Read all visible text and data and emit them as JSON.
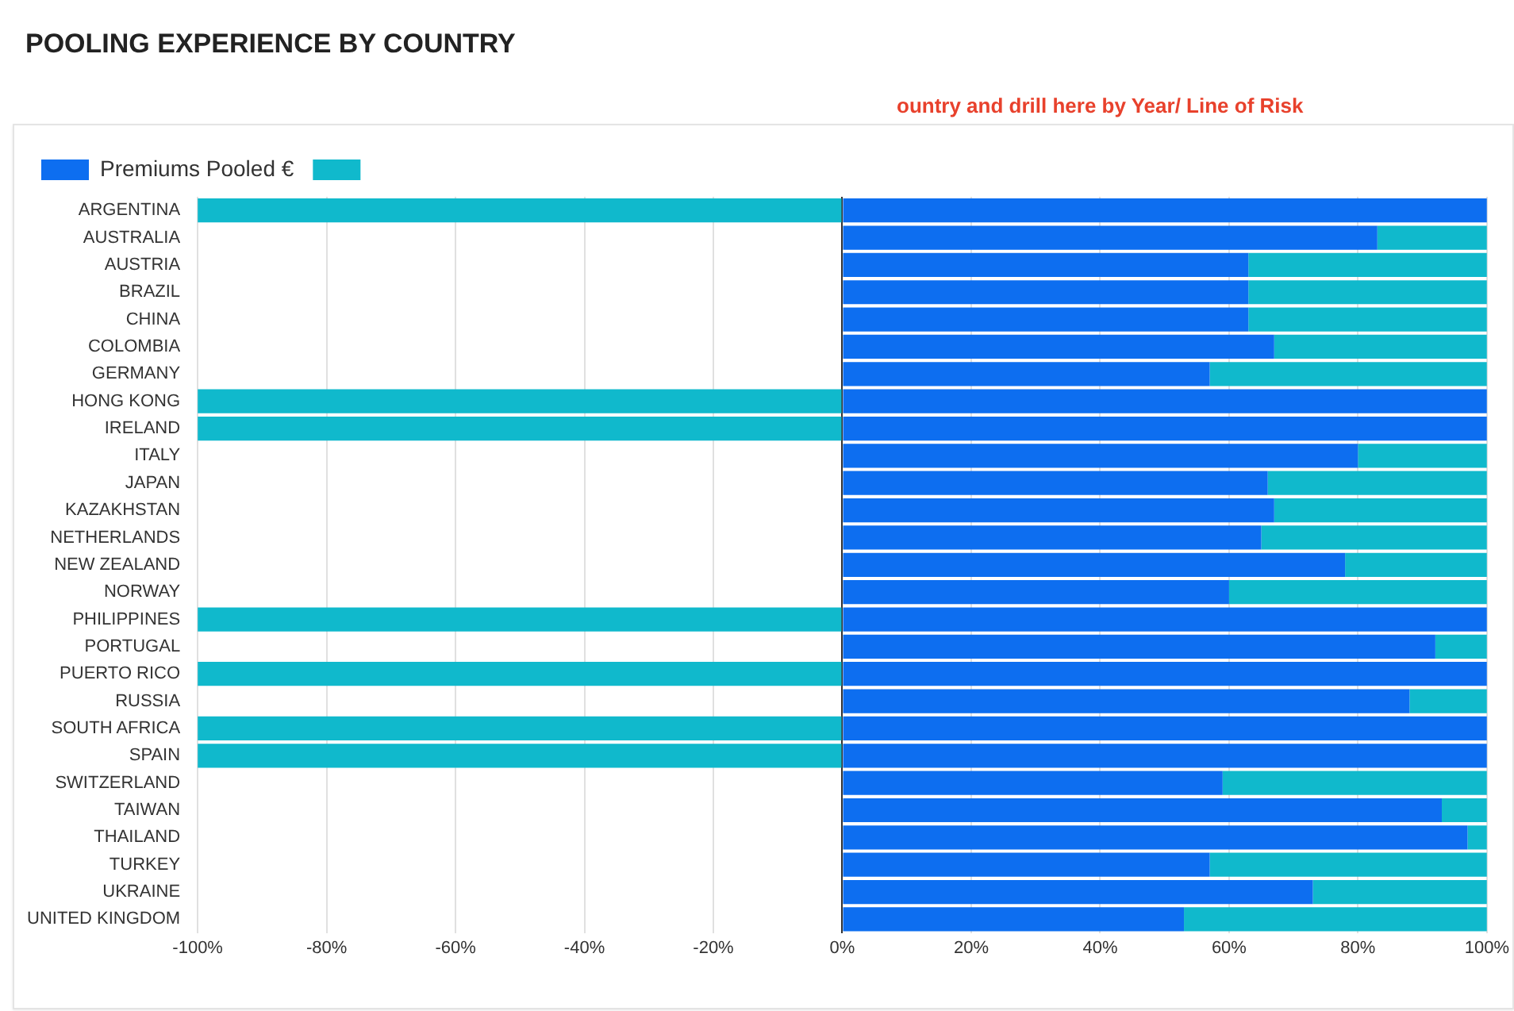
{
  "chart_data": {
    "type": "bar",
    "orientation": "horizontal",
    "stacked": true,
    "title": "POOLING EXPERIENCE BY COUNTRY",
    "annotations": [
      "ountry and drill here by Year/ Line of Risk"
    ],
    "categories": [
      "ARGENTINA",
      "AUSTRALIA",
      "AUSTRIA",
      "BRAZIL",
      "CHINA",
      "COLOMBIA",
      "GERMANY",
      "HONG KONG",
      "IRELAND",
      "ITALY",
      "JAPAN",
      "KAZAKHSTAN",
      "NETHERLANDS",
      "NEW ZEALAND",
      "NORWAY",
      "PHILIPPINES",
      "PORTUGAL",
      "PUERTO RICO",
      "RUSSIA",
      "SOUTH AFRICA",
      "SPAIN",
      "SWITZERLAND",
      "TAIWAN",
      "THAILAND",
      "TURKEY",
      "UKRAINE",
      "UNITED KINGDOM"
    ],
    "series": [
      {
        "name": "Premiums Pooled €",
        "color": "#0d6ef0",
        "values": [
          100,
          83,
          63,
          63,
          63,
          67,
          57,
          100,
          100,
          80,
          66,
          67,
          65,
          78,
          60,
          100,
          92,
          100,
          88,
          100,
          100,
          59,
          93,
          97,
          57,
          73,
          53
        ]
      },
      {
        "color": "#10b9cc",
        "values": [
          -100,
          17,
          37,
          37,
          37,
          33,
          43,
          -100,
          -100,
          20,
          34,
          33,
          35,
          22,
          40,
          -100,
          8,
          -100,
          12,
          -100,
          -100,
          41,
          7,
          3,
          43,
          27,
          47
        ]
      }
    ],
    "xlim": [
      -100,
      100
    ],
    "xticks": [
      {
        "value": -100,
        "label": "-100%"
      },
      {
        "value": -80,
        "label": "-80%"
      },
      {
        "value": -60,
        "label": "-60%"
      },
      {
        "value": -40,
        "label": "-40%"
      },
      {
        "value": -20,
        "label": "-20%"
      },
      {
        "value": 0,
        "label": "0%"
      },
      {
        "value": 20,
        "label": "20%"
      },
      {
        "value": 40,
        "label": "40%"
      },
      {
        "value": 60,
        "label": "60%"
      },
      {
        "value": 80,
        "label": "80%"
      },
      {
        "value": 100,
        "label": "100%"
      }
    ],
    "grid": "x",
    "legend": "top left"
  }
}
